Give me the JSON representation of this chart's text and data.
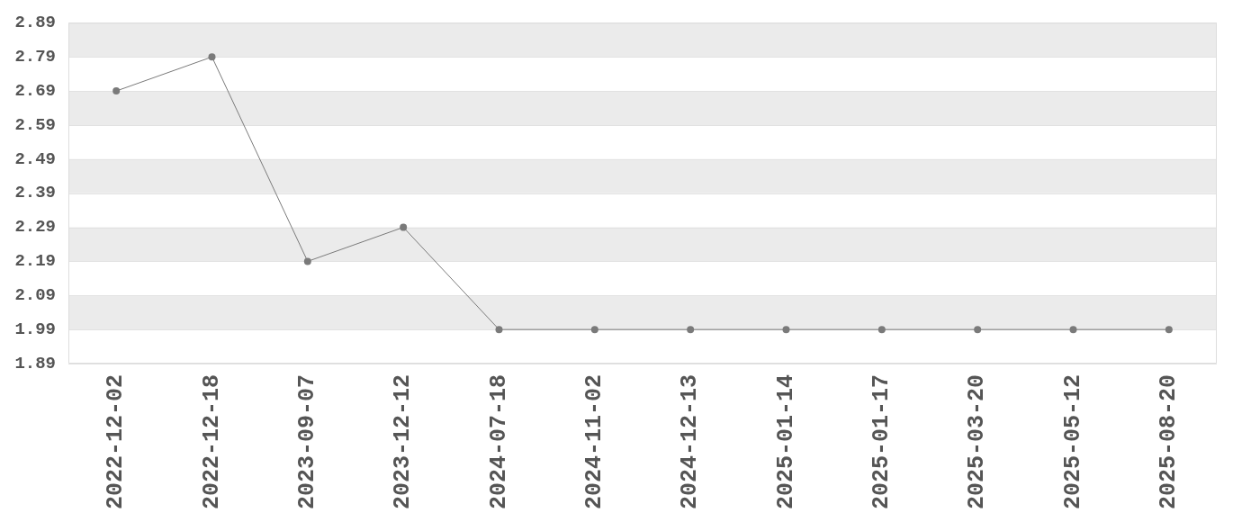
{
  "chart_data": {
    "type": "line",
    "categories": [
      "2022-12-02",
      "2022-12-18",
      "2023-09-07",
      "2023-12-12",
      "2024-07-18",
      "2024-11-02",
      "2024-12-13",
      "2025-01-14",
      "2025-01-17",
      "2025-03-20",
      "2025-05-12",
      "2025-08-20"
    ],
    "series": [
      {
        "color": "#7a7a7a",
        "values": [
          2.69,
          2.79,
          2.19,
          2.29,
          1.99,
          1.99,
          1.99,
          1.99,
          1.99,
          1.99,
          1.99,
          1.99
        ]
      }
    ],
    "ylim": [
      1.89,
      2.89
    ],
    "yticks": [
      1.89,
      1.99,
      2.09,
      2.19,
      2.29,
      2.39,
      2.49,
      2.59,
      2.69,
      2.79,
      2.89
    ],
    "grid": "y",
    "marker": "circle",
    "line_style": "solid"
  }
}
